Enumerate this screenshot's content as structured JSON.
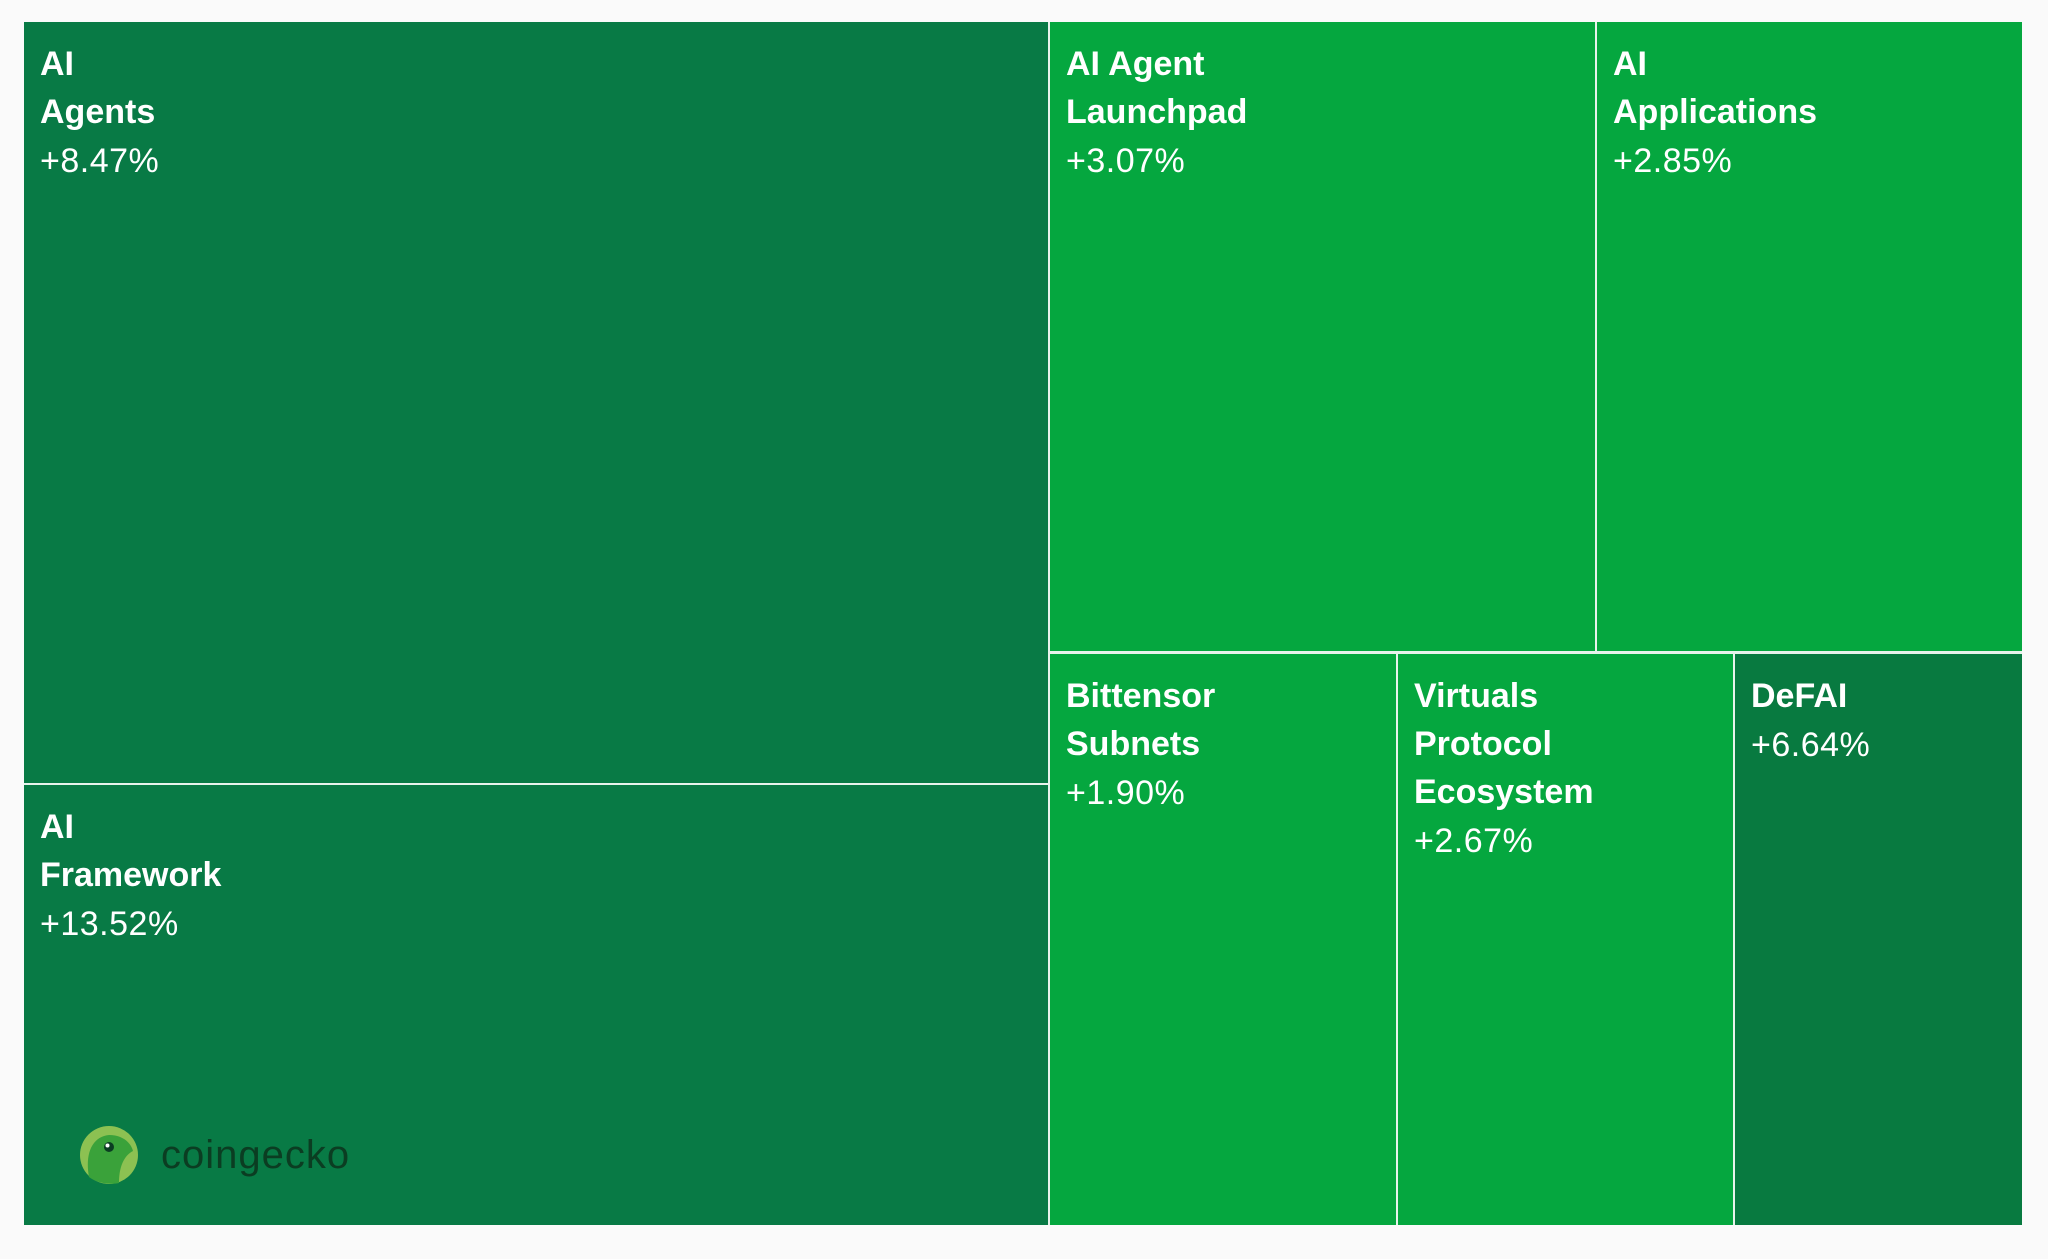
{
  "chart_data": {
    "type": "treemap",
    "tiles": [
      {
        "name": "AI\nAgents",
        "change": "+8.47%",
        "value": 8.47,
        "color": "#087a45"
      },
      {
        "name": "AI\nFramework",
        "change": "+13.52%",
        "value": 13.52,
        "color": "#087a45"
      },
      {
        "name": "AI Agent\nLaunchpad",
        "change": "+3.07%",
        "value": 3.07,
        "color": "#05a73f"
      },
      {
        "name": "AI\nApplications",
        "change": "+2.85%",
        "value": 2.85,
        "color": "#05a73f"
      },
      {
        "name": "Bittensor\nSubnets",
        "change": "+1.90%",
        "value": 1.9,
        "color": "#05a73f"
      },
      {
        "name": "Virtuals\nProtocol\nEcosystem",
        "change": "+2.67%",
        "value": 2.67,
        "color": "#05a73f"
      },
      {
        "name": "DeFAI",
        "change": "+6.64%",
        "value": 6.64,
        "color": "#087a40"
      }
    ]
  },
  "watermark": {
    "text": "coingecko"
  }
}
